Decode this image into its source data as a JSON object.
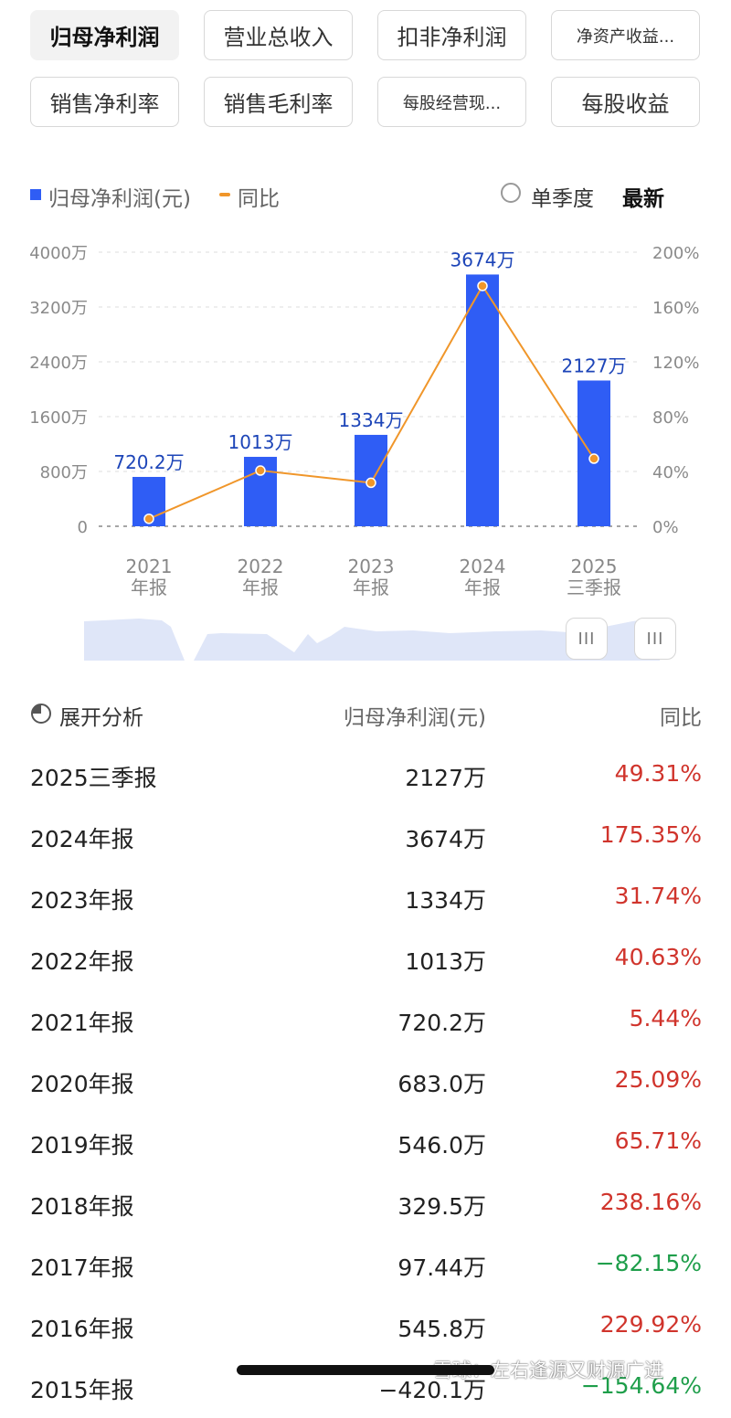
{
  "tabs": [
    {
      "label": "归母净利润",
      "active": true
    },
    {
      "label": "营业总收入",
      "active": false
    },
    {
      "label": "扣非净利润",
      "active": false
    },
    {
      "label": "净资产收益...",
      "active": false,
      "small": true
    },
    {
      "label": "销售净利率",
      "active": false
    },
    {
      "label": "销售毛利率",
      "active": false
    },
    {
      "label": "每股经营现...",
      "active": false,
      "small": true
    },
    {
      "label": "每股收益",
      "active": false
    }
  ],
  "legend": {
    "bar_label": "归母净利润(元)",
    "line_label": "同比",
    "single_quarter_label": "单季度",
    "latest_label": "最新"
  },
  "colors": {
    "bar": "#2f5df5",
    "line": "#f0962a",
    "bar_label": "#1d45b8",
    "positive": "#d0342c",
    "negative": "#1e9e4a"
  },
  "chart_data": {
    "type": "bar",
    "categories": [
      [
        "2021",
        "年报"
      ],
      [
        "2022",
        "年报"
      ],
      [
        "2023",
        "年报"
      ],
      [
        "2024",
        "年报"
      ],
      [
        "2025",
        "三季报"
      ]
    ],
    "series": [
      {
        "type": "bar",
        "axis": "left",
        "values": [
          720.2,
          1013,
          1334,
          3674,
          2127
        ],
        "labels": [
          "720.2万",
          "1013万",
          "1334万",
          "3674万",
          "2127万"
        ]
      },
      {
        "type": "line",
        "axis": "right",
        "values": [
          5.44,
          40.63,
          31.74,
          175.35,
          49.31
        ]
      }
    ],
    "left_axis": {
      "ticks": [
        "0",
        "800万",
        "1600万",
        "2400万",
        "3200万",
        "4000万"
      ],
      "range": [
        0,
        4000
      ]
    },
    "right_axis": {
      "ticks": [
        "0%",
        "40%",
        "80%",
        "120%",
        "160%",
        "200%"
      ],
      "range": [
        0,
        200
      ]
    },
    "grid": true
  },
  "slider": {
    "handle_glyph": "III"
  },
  "table": {
    "analysis_label": "展开分析",
    "value_header": "归母净利润(元)",
    "yoy_header": "同比",
    "rows": [
      {
        "period": "2025三季报",
        "value": "2127万",
        "yoy": "49.31%",
        "sign": "pos"
      },
      {
        "period": "2024年报",
        "value": "3674万",
        "yoy": "175.35%",
        "sign": "pos"
      },
      {
        "period": "2023年报",
        "value": "1334万",
        "yoy": "31.74%",
        "sign": "pos"
      },
      {
        "period": "2022年报",
        "value": "1013万",
        "yoy": "40.63%",
        "sign": "pos"
      },
      {
        "period": "2021年报",
        "value": "720.2万",
        "yoy": "5.44%",
        "sign": "pos"
      },
      {
        "period": "2020年报",
        "value": "683.0万",
        "yoy": "25.09%",
        "sign": "pos"
      },
      {
        "period": "2019年报",
        "value": "546.0万",
        "yoy": "65.71%",
        "sign": "pos"
      },
      {
        "period": "2018年报",
        "value": "329.5万",
        "yoy": "238.16%",
        "sign": "pos"
      },
      {
        "period": "2017年报",
        "value": "97.44万",
        "yoy": "−82.15%",
        "sign": "neg"
      },
      {
        "period": "2016年报",
        "value": "545.8万",
        "yoy": "229.92%",
        "sign": "pos"
      },
      {
        "period": "2015年报",
        "value": "−420.1万",
        "yoy": "−154.64%",
        "sign": "neg"
      }
    ]
  },
  "watermark": "雪球：左右逢源又财源广进"
}
